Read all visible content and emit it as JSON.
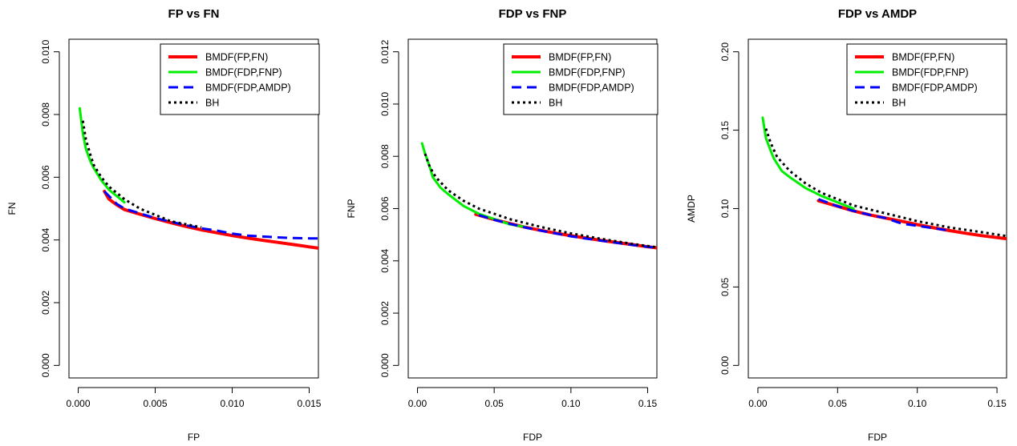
{
  "chart_data": [
    {
      "type": "line",
      "title": "FP vs FN",
      "xlabel": "FP",
      "ylabel": "FN",
      "xlim": [
        -0.0006,
        0.0156
      ],
      "ylim": [
        -0.0004,
        0.0104
      ],
      "xticks": [
        {
          "value": 0.0,
          "label": "0.000"
        },
        {
          "value": 0.005,
          "label": "0.005"
        },
        {
          "value": 0.01,
          "label": "0.010"
        },
        {
          "value": 0.015,
          "label": "0.015"
        }
      ],
      "yticks": [
        {
          "value": 0.0,
          "label": "0.000"
        },
        {
          "value": 0.002,
          "label": "0.002"
        },
        {
          "value": 0.004,
          "label": "0.004"
        },
        {
          "value": 0.006,
          "label": "0.006"
        },
        {
          "value": 0.008,
          "label": "0.008"
        },
        {
          "value": 0.01,
          "label": "0.010"
        }
      ],
      "grid": false,
      "legend": "top-right",
      "series": [
        {
          "name": "BMDF(FP,FN)",
          "color": "#ff0000",
          "dash": "solid",
          "width": 4,
          "x": [
            0.0017,
            0.002,
            0.0025,
            0.003,
            0.004,
            0.005,
            0.006,
            0.007,
            0.008,
            0.009,
            0.01,
            0.011,
            0.012,
            0.013,
            0.014,
            0.015,
            0.0156
          ],
          "y": [
            0.00555,
            0.0053,
            0.00512,
            0.00497,
            0.00482,
            0.00468,
            0.00455,
            0.00443,
            0.00432,
            0.00423,
            0.00414,
            0.00406,
            0.00399,
            0.00392,
            0.00385,
            0.00378,
            0.00374
          ]
        },
        {
          "name": "BMDF(FDP,FNP)",
          "color": "#00ee00",
          "dash": "solid",
          "width": 3,
          "x": [
            0.0001,
            0.0003,
            0.0005,
            0.0008,
            0.001,
            0.0015,
            0.002,
            0.003
          ],
          "y": [
            0.0082,
            0.0074,
            0.0069,
            0.0065,
            0.0063,
            0.0059,
            0.0056,
            0.0052
          ]
        },
        {
          "name": "BMDF(FDP,AMDP)",
          "color": "#0000ff",
          "dash": "dashed",
          "width": 3,
          "x": [
            0.0017,
            0.0025,
            0.003,
            0.004,
            0.005,
            0.006,
            0.007,
            0.008,
            0.009,
            0.01,
            0.011,
            0.012,
            0.013,
            0.014,
            0.015,
            0.0156
          ],
          "y": [
            0.00555,
            0.00515,
            0.005,
            0.00485,
            0.0047,
            0.00458,
            0.00447,
            0.00437,
            0.0043,
            0.0042,
            0.00414,
            0.00411,
            0.00408,
            0.00406,
            0.00405,
            0.00405
          ]
        },
        {
          "name": "BH",
          "color": "#000000",
          "dash": "dotted",
          "width": 3,
          "x": [
            0.0003,
            0.0005,
            0.0008,
            0.001,
            0.0015,
            0.002,
            0.003,
            0.004,
            0.005,
            0.006,
            0.007,
            0.008
          ],
          "y": [
            0.0078,
            0.0072,
            0.0067,
            0.0064,
            0.006,
            0.0057,
            0.0053,
            0.005,
            0.0048,
            0.0046,
            0.0045,
            0.0044
          ]
        }
      ]
    },
    {
      "type": "line",
      "title": "FDP vs FNP",
      "xlabel": "FDP",
      "ylabel": "FNP",
      "xlim": [
        -0.006,
        0.156
      ],
      "ylim": [
        -0.00048,
        0.01248
      ],
      "xticks": [
        {
          "value": 0.0,
          "label": "0.00"
        },
        {
          "value": 0.05,
          "label": "0.05"
        },
        {
          "value": 0.1,
          "label": "0.10"
        },
        {
          "value": 0.15,
          "label": "0.15"
        }
      ],
      "yticks": [
        {
          "value": 0.0,
          "label": "0.000"
        },
        {
          "value": 0.002,
          "label": "0.002"
        },
        {
          "value": 0.004,
          "label": "0.004"
        },
        {
          "value": 0.006,
          "label": "0.006"
        },
        {
          "value": 0.008,
          "label": "0.008"
        },
        {
          "value": 0.01,
          "label": "0.010"
        },
        {
          "value": 0.012,
          "label": "0.012"
        }
      ],
      "grid": false,
      "legend": "top-right",
      "series": [
        {
          "name": "BMDF(FP,FN)",
          "color": "#ff0000",
          "dash": "solid",
          "width": 4,
          "x": [
            0.038,
            0.05,
            0.06,
            0.07,
            0.08,
            0.09,
            0.1,
            0.11,
            0.12,
            0.13,
            0.14,
            0.15,
            0.156
          ],
          "y": [
            0.00578,
            0.00558,
            0.00543,
            0.00529,
            0.00517,
            0.00506,
            0.00496,
            0.00487,
            0.00478,
            0.0047,
            0.00462,
            0.00454,
            0.0045
          ]
        },
        {
          "name": "BMDF(FDP,FNP)",
          "color": "#00ee00",
          "dash": "solid",
          "width": 3,
          "x": [
            0.003,
            0.005,
            0.008,
            0.01,
            0.015,
            0.02,
            0.03,
            0.04,
            0.05,
            0.06,
            0.07
          ],
          "y": [
            0.0085,
            0.0081,
            0.0076,
            0.0072,
            0.0068,
            0.00655,
            0.0061,
            0.0058,
            0.0056,
            0.0054,
            0.0053
          ]
        },
        {
          "name": "BMDF(FDP,AMDP)",
          "color": "#0000ff",
          "dash": "dashed",
          "width": 3,
          "x": [
            0.04,
            0.05,
            0.06,
            0.07,
            0.08,
            0.09,
            0.1,
            0.11,
            0.12,
            0.13,
            0.14,
            0.15,
            0.156
          ],
          "y": [
            0.00575,
            0.00557,
            0.00542,
            0.00528,
            0.00516,
            0.00505,
            0.00494,
            0.00485,
            0.00477,
            0.00469,
            0.00461,
            0.00454,
            0.0045
          ]
        },
        {
          "name": "BH",
          "color": "#000000",
          "dash": "dotted",
          "width": 3,
          "x": [
            0.005,
            0.008,
            0.012,
            0.02,
            0.03,
            0.04,
            0.05,
            0.06,
            0.08,
            0.1,
            0.12,
            0.14,
            0.156
          ],
          "y": [
            0.0081,
            0.0076,
            0.0072,
            0.0067,
            0.0063,
            0.006,
            0.0058,
            0.0056,
            0.0053,
            0.00505,
            0.00484,
            0.00465,
            0.00452
          ]
        }
      ]
    },
    {
      "type": "line",
      "title": "FDP vs AMDP",
      "xlabel": "FDP",
      "ylabel": "AMDP",
      "xlim": [
        -0.006,
        0.156
      ],
      "ylim": [
        -0.008,
        0.208
      ],
      "xticks": [
        {
          "value": 0.0,
          "label": "0.00"
        },
        {
          "value": 0.05,
          "label": "0.05"
        },
        {
          "value": 0.1,
          "label": "0.10"
        },
        {
          "value": 0.15,
          "label": "0.15"
        }
      ],
      "yticks": [
        {
          "value": 0.0,
          "label": "0.00"
        },
        {
          "value": 0.05,
          "label": "0.05"
        },
        {
          "value": 0.1,
          "label": "0.10"
        },
        {
          "value": 0.15,
          "label": "0.15"
        },
        {
          "value": 0.2,
          "label": "0.20"
        }
      ],
      "grid": false,
      "legend": "top-right",
      "series": [
        {
          "name": "BMDF(FP,FN)",
          "color": "#ff0000",
          "dash": "solid",
          "width": 4,
          "x": [
            0.038,
            0.05,
            0.06,
            0.07,
            0.08,
            0.09,
            0.1,
            0.11,
            0.12,
            0.13,
            0.14,
            0.15,
            0.156
          ],
          "y": [
            0.105,
            0.1015,
            0.0985,
            0.096,
            0.094,
            0.092,
            0.0898,
            0.0878,
            0.086,
            0.0843,
            0.0828,
            0.0815,
            0.0808
          ]
        },
        {
          "name": "BMDF(FDP,FNP)",
          "color": "#00ee00",
          "dash": "solid",
          "width": 3,
          "x": [
            0.003,
            0.005,
            0.008,
            0.01,
            0.015,
            0.02,
            0.03,
            0.04,
            0.05,
            0.06
          ],
          "y": [
            0.158,
            0.145,
            0.137,
            0.132,
            0.124,
            0.12,
            0.113,
            0.108,
            0.104,
            0.1
          ]
        },
        {
          "name": "BMDF(FDP,AMDP)",
          "color": "#0000ff",
          "dash": "dashed",
          "width": 3,
          "x": [
            0.038,
            0.05,
            0.06,
            0.07,
            0.08,
            0.09,
            0.1,
            0.11,
            0.12
          ],
          "y": [
            0.106,
            0.1015,
            0.0985,
            0.096,
            0.094,
            0.0905,
            0.089,
            0.0875,
            0.086
          ]
        },
        {
          "name": "BH",
          "color": "#000000",
          "dash": "dotted",
          "width": 3,
          "x": [
            0.005,
            0.008,
            0.012,
            0.02,
            0.03,
            0.04,
            0.05,
            0.06,
            0.08,
            0.1,
            0.12,
            0.14,
            0.156
          ],
          "y": [
            0.151,
            0.142,
            0.133,
            0.124,
            0.116,
            0.11,
            0.106,
            0.102,
            0.097,
            0.092,
            0.088,
            0.085,
            0.0825
          ]
        }
      ]
    }
  ]
}
